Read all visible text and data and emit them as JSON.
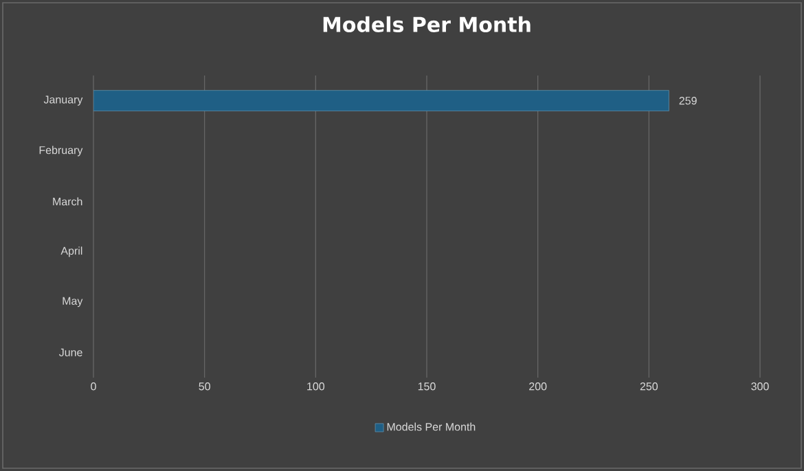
{
  "chart_data": {
    "type": "bar",
    "orientation": "horizontal",
    "title": "Models Per Month",
    "categories": [
      "January",
      "February",
      "March",
      "April",
      "May",
      "June"
    ],
    "series": [
      {
        "name": "Models Per Month",
        "color": "#1f5f85",
        "values": [
          259,
          null,
          null,
          null,
          null,
          null
        ]
      }
    ],
    "xlim": [
      0,
      300
    ],
    "xticks": [
      0,
      50,
      100,
      150,
      200,
      250,
      300
    ],
    "grid": "x",
    "legend": "bottom",
    "data_labels": true
  }
}
